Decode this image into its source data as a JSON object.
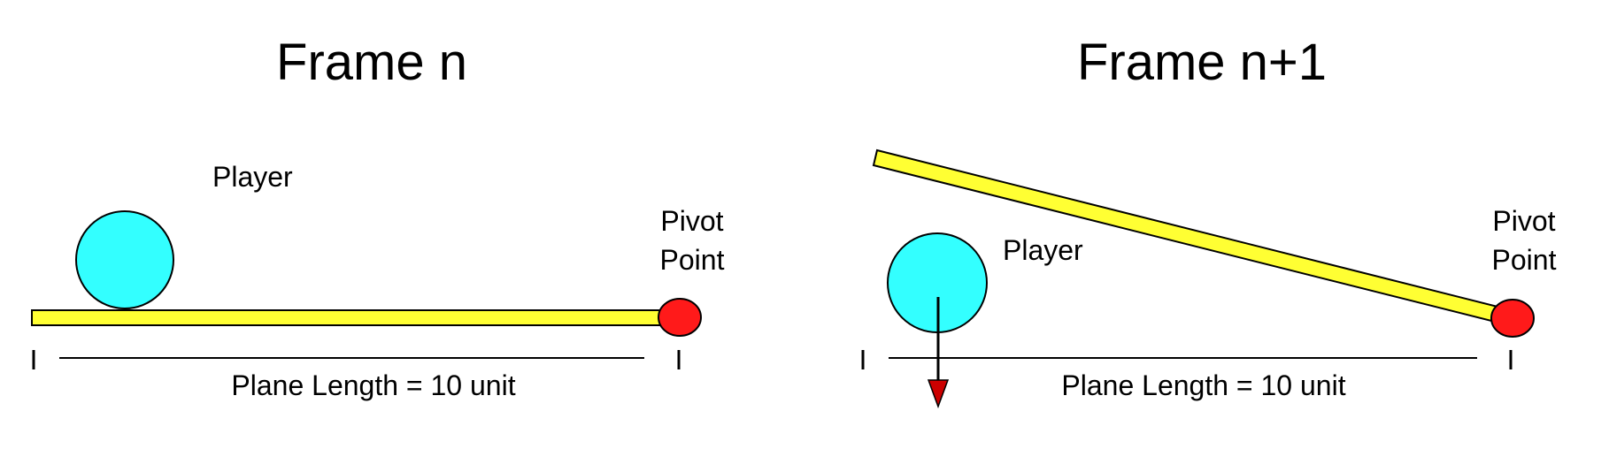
{
  "frames": [
    {
      "title": "Frame n",
      "player_label": "Player",
      "pivot_label_line1": "Pivot",
      "pivot_label_line2": "Point",
      "plane_length_label": "Plane Length = 10 unit"
    },
    {
      "title": "Frame n+1",
      "player_label": "Player",
      "pivot_label_line1": "Pivot",
      "pivot_label_line2": "Point",
      "plane_length_label": "Plane Length = 10 unit"
    }
  ],
  "colors": {
    "player": "#33ffff",
    "plane": "#ffff33",
    "pivot": "#ff1a1a",
    "arrow_head": "#cc0000",
    "stroke": "#000000"
  }
}
